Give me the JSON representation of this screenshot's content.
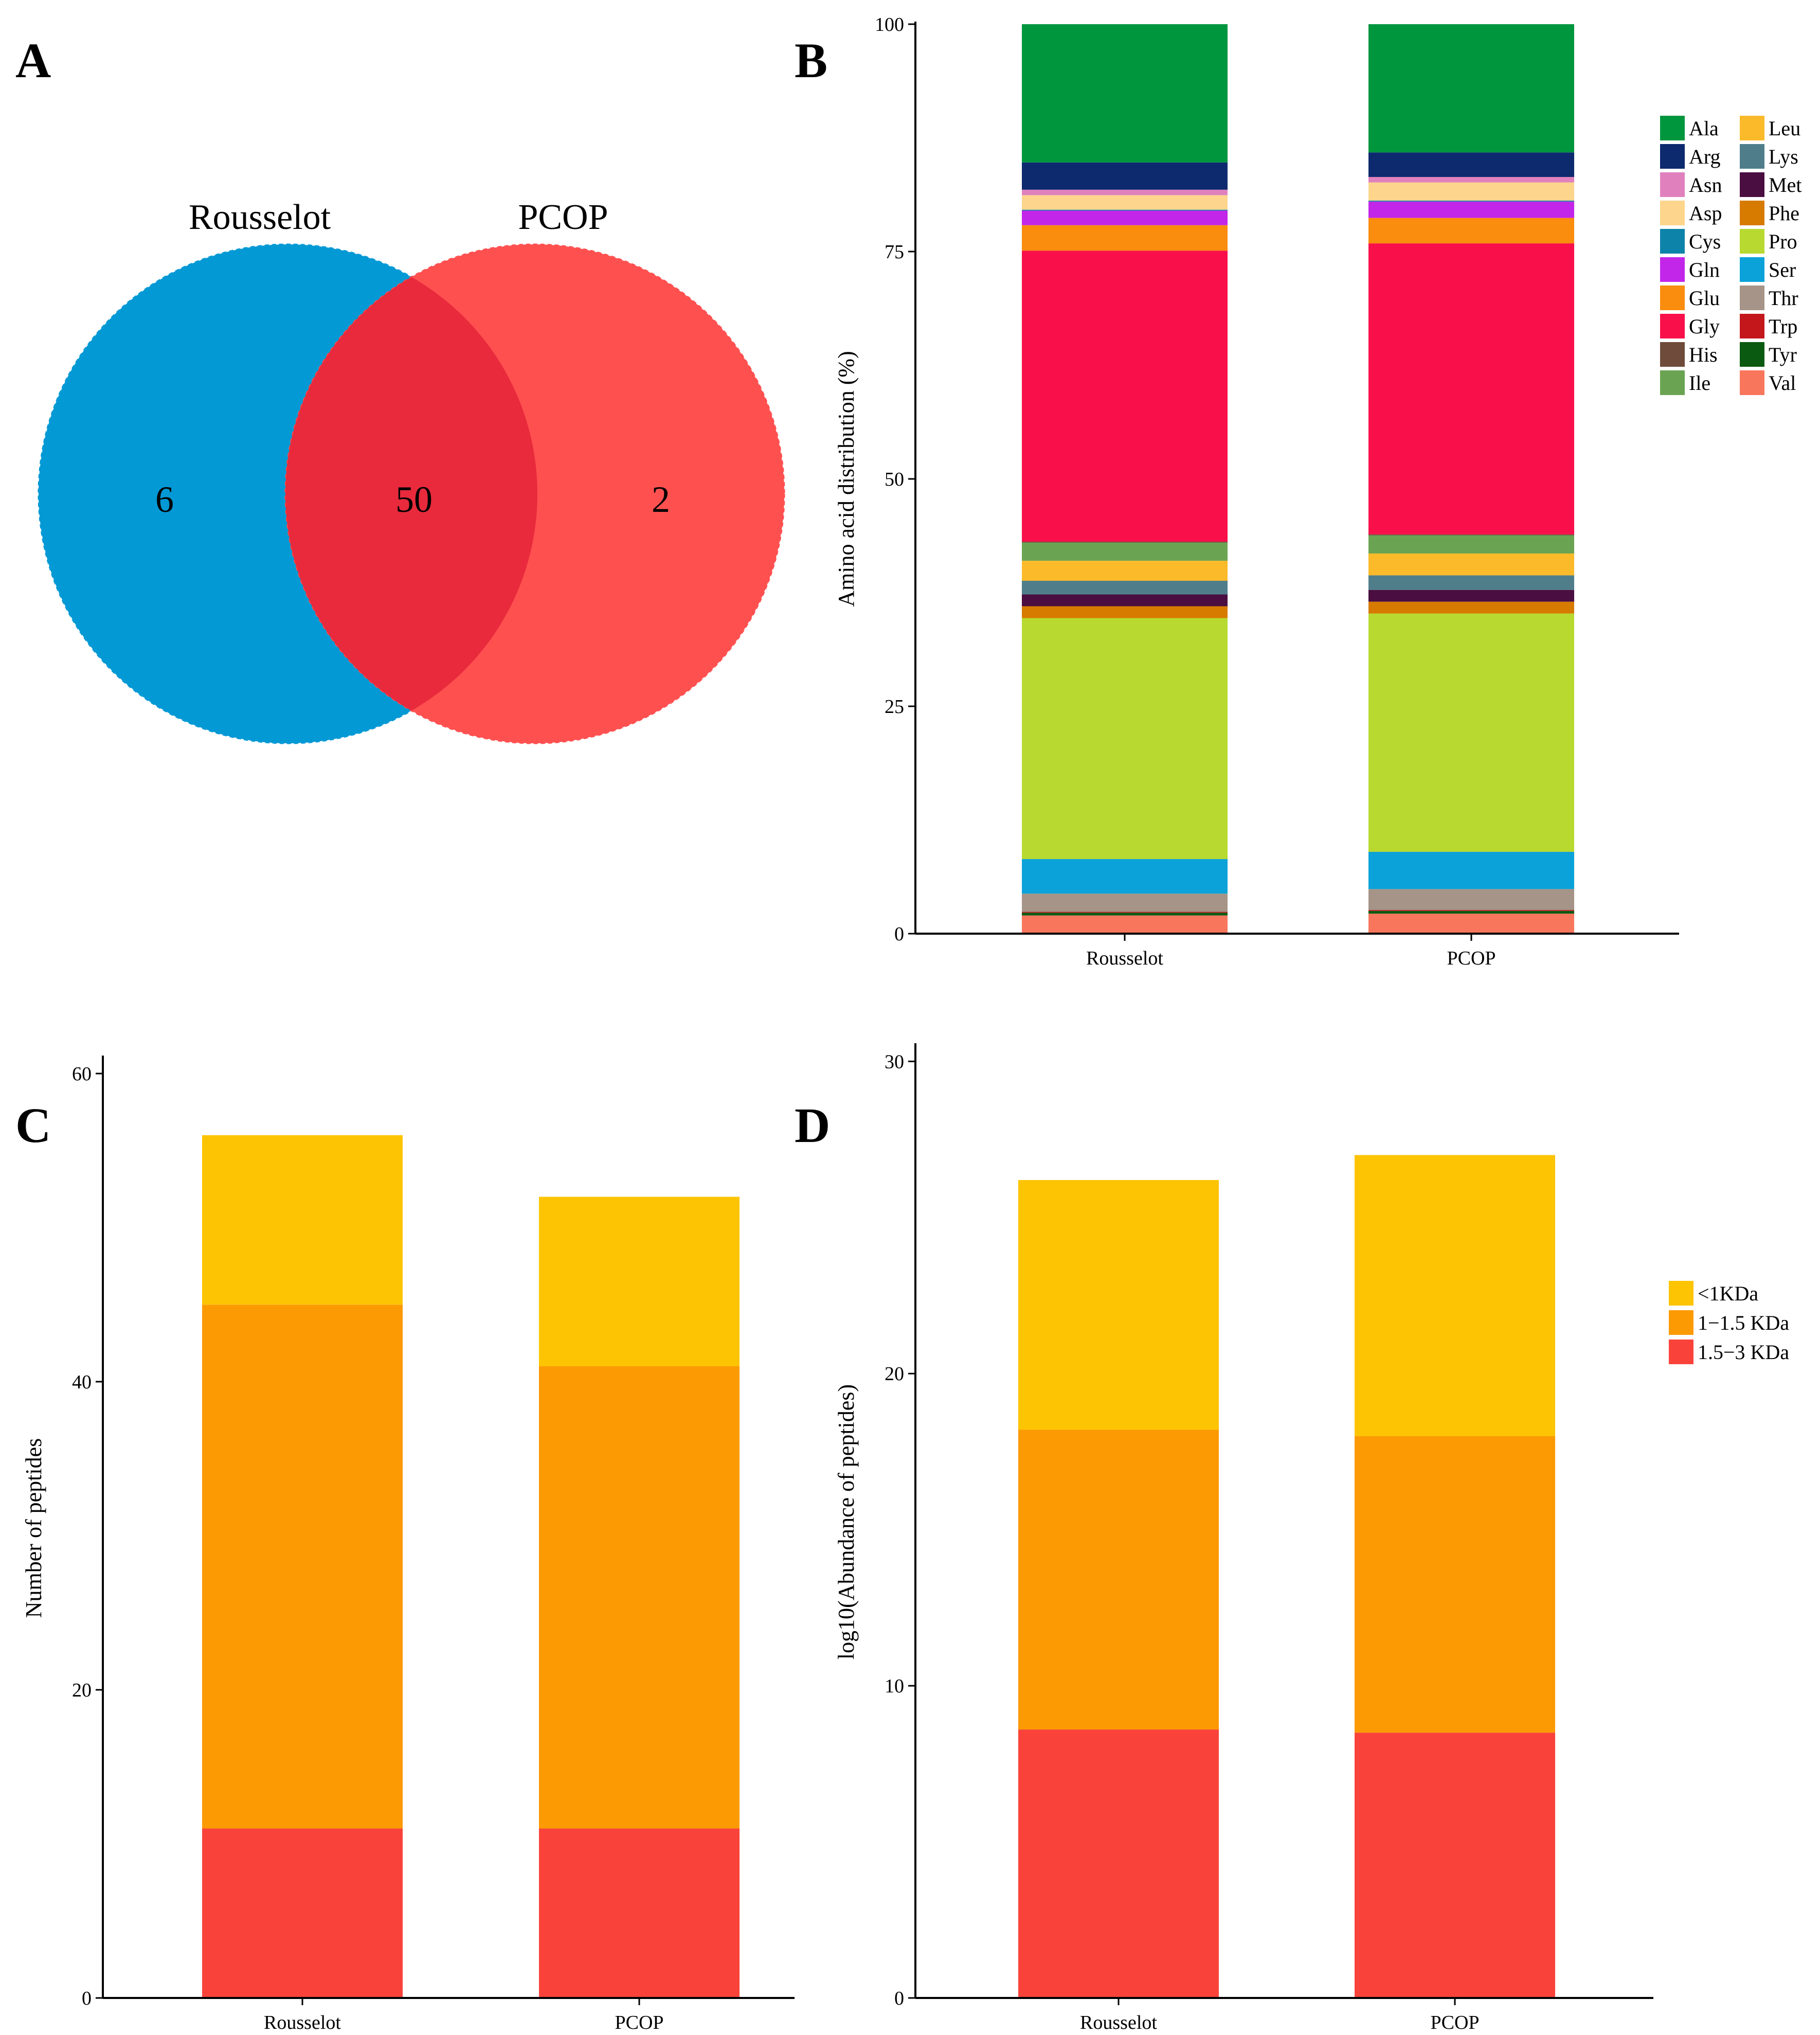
{
  "panels": [
    {
      "id": "A",
      "letter": "A"
    },
    {
      "id": "B",
      "letter": "B"
    },
    {
      "id": "C",
      "letter": "C"
    },
    {
      "id": "D",
      "letter": "D"
    }
  ],
  "venn": {
    "left_label": "Rousselot",
    "right_label": "PCOP",
    "left_only": "6",
    "overlap": "50",
    "right_only": "2",
    "left_color": "#0399D5",
    "right_color": "#FF5050",
    "overlap_color": "#E82A3C"
  },
  "chart_data": [
    {
      "panel": "B",
      "type": "bar",
      "stacked": true,
      "title": "",
      "xlabel": "",
      "ylabel": "Amino acid distribution (%)",
      "ylim": [
        0,
        100
      ],
      "yticks": [
        0,
        25,
        50,
        75,
        100
      ],
      "categories": [
        "Rousselot",
        "PCOP"
      ],
      "legend_position": "right",
      "series": [
        {
          "name": "Val",
          "color": "#F8765C",
          "values": [
            2.0,
            2.2
          ]
        },
        {
          "name": "Tyr",
          "color": "#0B5A12",
          "values": [
            0.3,
            0.3
          ]
        },
        {
          "name": "Trp",
          "color": "#C3171C",
          "values": [
            0.1,
            0.1
          ]
        },
        {
          "name": "Thr",
          "color": "#A59487",
          "values": [
            2.0,
            2.3
          ]
        },
        {
          "name": "Ser",
          "color": "#0BA2D9",
          "values": [
            3.8,
            4.1
          ]
        },
        {
          "name": "Pro",
          "color": "#B8D930",
          "values": [
            26.5,
            26.2
          ]
        },
        {
          "name": "Phe",
          "color": "#D77A00",
          "values": [
            1.3,
            1.3
          ]
        },
        {
          "name": "Met",
          "color": "#4A0E40",
          "values": [
            1.3,
            1.3
          ]
        },
        {
          "name": "Lys",
          "color": "#4F7E8A",
          "values": [
            1.5,
            1.6
          ]
        },
        {
          "name": "Leu",
          "color": "#FBBA2A",
          "values": [
            2.2,
            2.4
          ]
        },
        {
          "name": "Ile",
          "color": "#6AA452",
          "values": [
            2.0,
            2.0
          ]
        },
        {
          "name": "His",
          "color": "#6E4B3A",
          "values": [
            0.1,
            0.1
          ]
        },
        {
          "name": "Gly",
          "color": "#F9104A",
          "values": [
            32.0,
            32.0
          ]
        },
        {
          "name": "Glu",
          "color": "#FA8C0E",
          "values": [
            2.8,
            2.8
          ]
        },
        {
          "name": "Gln",
          "color": "#C226E8",
          "values": [
            1.6,
            1.8
          ]
        },
        {
          "name": "Cys",
          "color": "#0E83A9",
          "values": [
            0.1,
            0.1
          ]
        },
        {
          "name": "Asp",
          "color": "#FDD58C",
          "values": [
            1.6,
            2.0
          ]
        },
        {
          "name": "Asn",
          "color": "#E081BE",
          "values": [
            0.6,
            0.6
          ]
        },
        {
          "name": "Arg",
          "color": "#0D2A6E",
          "values": [
            3.0,
            2.7
          ]
        },
        {
          "name": "Ala",
          "color": "#00963E",
          "values": [
            15.2,
            14.1
          ]
        }
      ],
      "legend_order": [
        "Ala",
        "Arg",
        "Asn",
        "Asp",
        "Cys",
        "Gln",
        "Glu",
        "Gly",
        "His",
        "Ile",
        "Leu",
        "Lys",
        "Met",
        "Phe",
        "Pro",
        "Ser",
        "Thr",
        "Trp",
        "Tyr",
        "Val"
      ]
    },
    {
      "panel": "C",
      "type": "bar",
      "stacked": true,
      "title": "",
      "xlabel": "",
      "ylabel": "Number of peptides",
      "ylim": [
        0,
        61
      ],
      "yticks": [
        0,
        20,
        40,
        60
      ],
      "categories": [
        "Rousselot",
        "PCOP"
      ],
      "series": [
        {
          "name": "1.5−3 KDa",
          "color": "#F9433A",
          "values": [
            11,
            11
          ]
        },
        {
          "name": "1−1.5 KDa",
          "color": "#FC9A04",
          "values": [
            34,
            30
          ]
        },
        {
          "name": "<1KDa",
          "color": "#FDC403",
          "values": [
            11,
            11
          ]
        }
      ]
    },
    {
      "panel": "D",
      "type": "bar",
      "stacked": true,
      "title": "",
      "xlabel": "",
      "ylabel": "log10(Abundance of peptides)",
      "ylim": [
        0,
        30.5
      ],
      "yticks": [
        0,
        10,
        20,
        30
      ],
      "categories": [
        "Rousselot",
        "PCOP"
      ],
      "legend_position": "right",
      "series": [
        {
          "name": "1.5−3 KDa",
          "color": "#F9433A",
          "values": [
            8.6,
            8.5
          ]
        },
        {
          "name": "1−1.5 KDa",
          "color": "#FC9A04",
          "values": [
            9.6,
            9.5
          ]
        },
        {
          "name": "<1KDa",
          "color": "#FDC403",
          "values": [
            8.0,
            9.0
          ]
        }
      ],
      "legend_order": [
        "<1KDa",
        "1−1.5 KDa",
        "1.5−3 KDa"
      ]
    }
  ]
}
